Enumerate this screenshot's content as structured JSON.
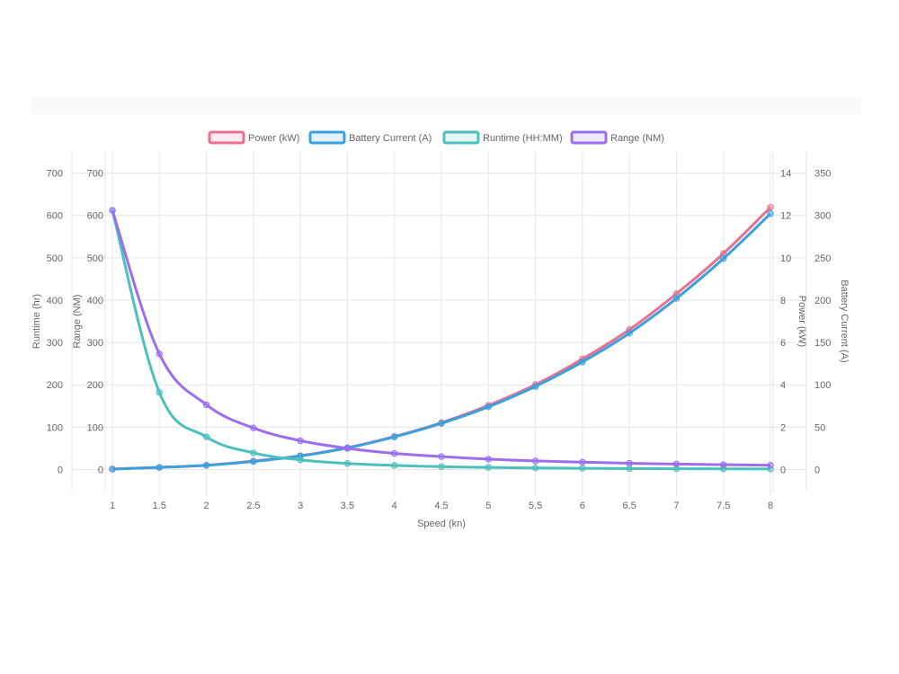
{
  "colors": {
    "power": "#e8718d",
    "current": "#3aa0e0",
    "runtime": "#4cc0bc",
    "range": "#9b6ef0",
    "grid": "#e6e6e6",
    "text": "#666666"
  },
  "chart_data": {
    "type": "line",
    "xlabel": "Speed (kn)",
    "x": [
      1,
      1.5,
      2,
      2.5,
      3,
      3.5,
      4,
      4.5,
      5,
      5.5,
      6,
      6.5,
      7,
      7.5,
      8
    ],
    "x_ticks": [
      "1",
      "1.5",
      "2",
      "2.5",
      "3",
      "3.5",
      "4",
      "4.5",
      "5",
      "5.5",
      "6",
      "6.5",
      "7",
      "7.5",
      "8"
    ],
    "legend_position": "top",
    "grid": true,
    "axes": [
      {
        "id": "runtime",
        "label": "Runtime (hr)",
        "side": "left",
        "min": -50,
        "max": 750,
        "ticks": [
          0,
          100,
          200,
          300,
          400,
          500,
          600,
          700
        ]
      },
      {
        "id": "range",
        "label": "Range (NM)",
        "side": "left",
        "min": -50,
        "max": 750,
        "ticks": [
          0,
          100,
          200,
          300,
          400,
          500,
          600,
          700
        ]
      },
      {
        "id": "power",
        "label": "Power (kW)",
        "side": "right",
        "min": -1,
        "max": 15,
        "ticks": [
          0,
          2,
          4,
          6,
          8,
          10,
          12,
          14
        ]
      },
      {
        "id": "current",
        "label": "Battery Current (A)",
        "side": "right",
        "min": -25,
        "max": 375,
        "ticks": [
          0,
          50,
          100,
          150,
          200,
          250,
          300,
          350
        ]
      }
    ],
    "series": [
      {
        "name": "Power (kW)",
        "axis": "power",
        "color_key": "power",
        "values": [
          0.02,
          0.1,
          0.2,
          0.4,
          0.65,
          1.03,
          1.56,
          2.21,
          3.03,
          4.01,
          5.22,
          6.61,
          8.3,
          10.2,
          12.38
        ]
      },
      {
        "name": "Battery Current (A)",
        "axis": "current",
        "color_key": "current",
        "values": [
          0.5,
          2.5,
          5,
          9.5,
          16,
          25.5,
          38.5,
          54.5,
          74,
          98,
          127,
          161,
          202,
          249,
          302
        ]
      },
      {
        "name": "Runtime (HH:MM)",
        "axis": "runtime",
        "color_key": "runtime",
        "values": [
          612,
          182,
          77,
          39.3,
          22.7,
          14.3,
          9.6,
          6.7,
          4.9,
          3.7,
          2.9,
          2.3,
          1.8,
          1.5,
          1.2
        ]
      },
      {
        "name": "Range (NM)",
        "axis": "range",
        "color_key": "range",
        "values": [
          612,
          273,
          153,
          98,
          68,
          50,
          38,
          30.5,
          24.5,
          20.4,
          17.3,
          14.8,
          12.9,
          11.3,
          10
        ]
      }
    ]
  }
}
